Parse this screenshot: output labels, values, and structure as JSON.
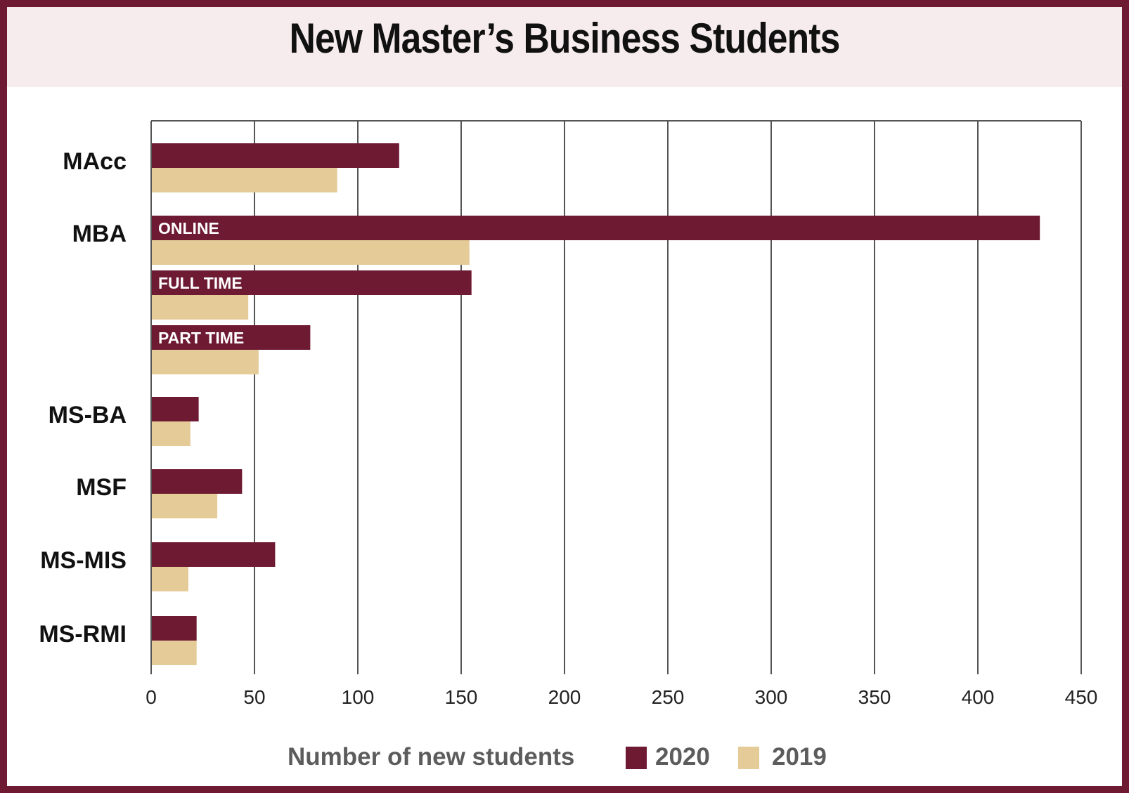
{
  "title": "New Master’s Business Students",
  "colors": {
    "series_2020": "#6e1a33",
    "series_2019": "#e4cb98",
    "frame": "#6e1a33",
    "grid": "#555555",
    "header_band": "#f6ecee"
  },
  "legend": {
    "title": "Number of new students",
    "items": [
      {
        "label": "2020",
        "color": "#6e1a33"
      },
      {
        "label": "2019",
        "color": "#e4cb98"
      }
    ]
  },
  "chart_data": {
    "type": "bar",
    "orientation": "horizontal",
    "title": "New Master’s Business Students",
    "xlabel": "Number of new students",
    "ylabel": "",
    "xlim": [
      0,
      450
    ],
    "xticks": [
      0,
      50,
      100,
      150,
      200,
      250,
      300,
      350,
      400,
      450
    ],
    "grid": true,
    "legend_position": "bottom",
    "groups": [
      {
        "label": "MAcc",
        "rows": [
          {
            "sublabel": "",
            "values": {
              "2020": 120,
              "2019": 90
            }
          }
        ]
      },
      {
        "label": "MBA",
        "rows": [
          {
            "sublabel": "ONLINE",
            "values": {
              "2020": 430,
              "2019": 154
            }
          },
          {
            "sublabel": "FULL TIME",
            "values": {
              "2020": 155,
              "2019": 47
            }
          },
          {
            "sublabel": "PART TIME",
            "values": {
              "2020": 77,
              "2019": 52
            }
          }
        ]
      },
      {
        "label": "MS-BA",
        "rows": [
          {
            "sublabel": "",
            "values": {
              "2020": 23,
              "2019": 19
            }
          }
        ]
      },
      {
        "label": "MSF",
        "rows": [
          {
            "sublabel": "",
            "values": {
              "2020": 44,
              "2019": 32
            }
          }
        ]
      },
      {
        "label": "MS-MIS",
        "rows": [
          {
            "sublabel": "",
            "values": {
              "2020": 60,
              "2019": 18
            }
          }
        ]
      },
      {
        "label": "MS-RMI",
        "rows": [
          {
            "sublabel": "",
            "values": {
              "2020": 22,
              "2019": 22
            }
          }
        ]
      }
    ],
    "series": [
      {
        "name": "2020",
        "values": [
          120,
          430,
          155,
          77,
          23,
          44,
          60,
          22
        ]
      },
      {
        "name": "2019",
        "values": [
          90,
          154,
          47,
          52,
          19,
          32,
          18,
          22
        ]
      }
    ]
  }
}
